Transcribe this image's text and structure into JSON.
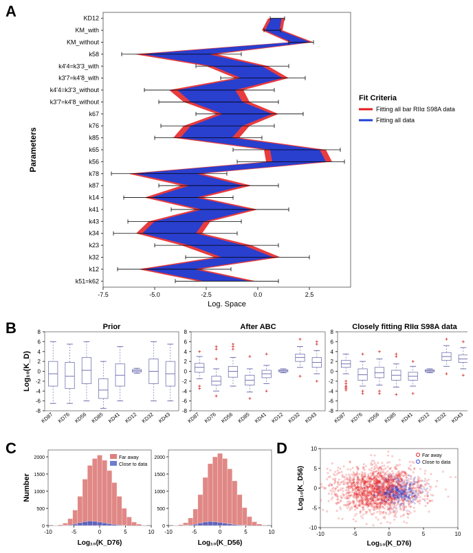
{
  "panelLabels": {
    "A": "A",
    "B": "B",
    "C": "C",
    "D": "D"
  },
  "colors": {
    "red": "#e41a1c",
    "blue": "#1f3fd6",
    "redFill": "#d6605d",
    "blueFill": "#4a5dc4",
    "axis": "#333333",
    "grid": "#e5e5e5",
    "boxLine": "#7070b0",
    "outlier": "#d62728",
    "errBar": "#000000",
    "bg": "#ffffff"
  },
  "panelA": {
    "type": "parallel-coords-violin",
    "xlabel": "Log. Space",
    "ylabel": "Parameters",
    "xlim": [
      -7.5,
      4.5
    ],
    "xticks": [
      -7.5,
      -5.0,
      -2.5,
      0.0,
      2.5
    ],
    "parameters": [
      "KD12",
      "KM_with",
      "KM_without",
      "k58",
      "k4'4=k3'3_with",
      "k3'7=k4'8_with",
      "k4'4=k3'3_without",
      "k3'7=k4'8_without",
      "k67",
      "k76",
      "k85",
      "k65",
      "k56",
      "k78",
      "k87",
      "k14",
      "k41",
      "k43",
      "k34",
      "k23",
      "k32",
      "k12",
      "k51=k62"
    ],
    "redCenters": [
      0.9,
      0.7,
      2.1,
      -4.0,
      -1.0,
      0.2,
      -2.5,
      -2.0,
      -0.5,
      -2.0,
      -2.5,
      1.8,
      2.0,
      -4.5,
      -2.0,
      -4.1,
      -1.5,
      -3.8,
      -4.3,
      -2.0,
      -0.5,
      -4.3,
      -1.5
    ],
    "blueCenters": [
      0.9,
      0.7,
      2.1,
      -4.0,
      -1.0,
      0.2,
      -2.5,
      -2.0,
      -0.5,
      -2.0,
      -2.5,
      1.8,
      2.0,
      -4.5,
      -2.0,
      -4.1,
      -1.5,
      -3.8,
      -4.3,
      -2.0,
      -0.5,
      -4.3,
      -1.5
    ],
    "redHalfW": [
      0.4,
      0.5,
      0.6,
      2.0,
      1.5,
      1.3,
      1.8,
      1.6,
      1.5,
      1.6,
      1.6,
      1.5,
      1.6,
      1.8,
      1.7,
      1.4,
      1.5,
      1.5,
      1.6,
      1.7,
      1.6,
      1.5,
      1.4
    ],
    "blueHalfW": [
      0.25,
      0.35,
      0.45,
      1.6,
      1.2,
      1.0,
      1.4,
      1.25,
      1.2,
      1.25,
      1.25,
      1.2,
      1.3,
      1.5,
      1.3,
      1.1,
      1.2,
      1.2,
      1.3,
      1.3,
      1.25,
      1.2,
      1.1
    ],
    "errLo": [
      0.6,
      0.3,
      1.5,
      -6.6,
      -3.0,
      -1.8,
      -5.5,
      -4.8,
      -3.0,
      -4.7,
      -5.0,
      -1.2,
      -1.0,
      -7.1,
      -4.8,
      -6.5,
      -4.2,
      -6.3,
      -7.0,
      -5.0,
      -3.5,
      -6.8,
      -4.0
    ],
    "errHi": [
      1.3,
      1.1,
      2.7,
      -0.8,
      1.5,
      2.3,
      0.8,
      1.0,
      2.2,
      0.8,
      0.2,
      4.0,
      4.2,
      -1.5,
      1.0,
      -1.2,
      1.5,
      -0.8,
      -1.0,
      1.0,
      2.5,
      -1.3,
      1.0
    ],
    "legend": {
      "title": "Fit Criteria",
      "items": [
        {
          "color": "#e41a1c",
          "label": "Fitting all bar RIIα S98A data"
        },
        {
          "color": "#1f3fd6",
          "label": "Fitting all data"
        }
      ]
    }
  },
  "panelB": {
    "type": "boxplot-row",
    "ylabel": "Log₁₀(K_D)",
    "columns": [
      "KD87",
      "KD76",
      "KD56",
      "KD85",
      "KD41",
      "KD12",
      "KD32",
      "KD43"
    ],
    "ylim": [
      -8,
      8
    ],
    "yticks": [
      -8,
      -6,
      -4,
      -2,
      0,
      2,
      4,
      6,
      8
    ],
    "subplots": [
      {
        "title": "Prior",
        "medians": [
          -0.5,
          -1.0,
          0.2,
          -3.8,
          -0.8,
          0.1,
          0.0,
          -0.5
        ],
        "q1": [
          -3.0,
          -3.5,
          -2.5,
          -5.5,
          -3.0,
          -0.15,
          -2.5,
          -3.0
        ],
        "q3": [
          2.0,
          1.8,
          2.8,
          -1.5,
          1.5,
          0.35,
          2.5,
          2.0
        ],
        "wlo": [
          -6.5,
          -6.5,
          -6.0,
          -7.5,
          -6.0,
          -0.4,
          -6.0,
          -6.0
        ],
        "whi": [
          6.0,
          5.5,
          6.0,
          2.0,
          5.0,
          0.6,
          6.0,
          5.5
        ],
        "outliers": [
          [],
          [],
          [],
          [],
          [],
          [],
          [],
          []
        ]
      },
      {
        "title": "After ABC",
        "medians": [
          0.8,
          -2.0,
          0.0,
          -1.8,
          -0.5,
          0.1,
          2.8,
          1.8
        ],
        "q1": [
          -0.2,
          -2.8,
          -1.2,
          -2.8,
          -1.3,
          -0.1,
          2.0,
          0.8
        ],
        "q3": [
          1.6,
          -1.0,
          1.0,
          -0.8,
          0.2,
          0.3,
          3.5,
          2.8
        ],
        "wlo": [
          -1.5,
          -4.0,
          -3.0,
          -4.2,
          -2.5,
          -0.3,
          0.8,
          -0.5
        ],
        "whi": [
          3.0,
          0.5,
          2.8,
          0.5,
          1.2,
          0.5,
          5.0,
          4.2
        ],
        "outliers": [
          [
            -3,
            -3.5,
            4.0
          ],
          [
            -5,
            2.5,
            4.5,
            5.0
          ],
          [
            4.5,
            5.0,
            5.5
          ],
          [
            -5.5,
            3.0
          ],
          [
            -4,
            3.5
          ],
          [],
          [
            -1,
            6.5
          ],
          [
            -2,
            5.5,
            6.0
          ]
        ]
      },
      {
        "title": "Closely fitting RIIα S98A data",
        "medians": [
          1.5,
          -0.7,
          -0.3,
          -0.8,
          -1.0,
          0.1,
          3.0,
          2.5
        ],
        "q1": [
          0.8,
          -1.8,
          -1.3,
          -1.8,
          -1.8,
          -0.1,
          2.2,
          1.8
        ],
        "q3": [
          2.2,
          0.5,
          0.8,
          0.2,
          -0.2,
          0.3,
          3.8,
          3.3
        ],
        "wlo": [
          -0.5,
          -3.0,
          -2.8,
          -3.2,
          -3.0,
          -0.3,
          1.0,
          0.5
        ],
        "whi": [
          3.5,
          2.0,
          2.5,
          1.5,
          1.0,
          0.5,
          5.2,
          4.8
        ],
        "outliers": [
          [
            -2,
            -2.5,
            -3,
            -3.2,
            -3.5,
            -3.8
          ],
          [
            -4.5,
            -4.0,
            3.5
          ],
          [
            -4,
            -4.5,
            4.0
          ],
          [
            -4.7,
            3.0,
            3.5
          ],
          [
            -4.5,
            2.0
          ],
          [],
          [
            -0.5,
            6.5
          ],
          [
            -0.8,
            6.0
          ]
        ]
      }
    ]
  },
  "panelC": {
    "type": "histogram-pair",
    "ylabel": "Number",
    "yticks": [
      0,
      500,
      1000,
      1500,
      2000
    ],
    "ylim": [
      0,
      2200
    ],
    "xlim": [
      -10,
      10
    ],
    "xticks": [
      -10,
      -5,
      0,
      5,
      10
    ],
    "legend": [
      {
        "color": "#d6605d",
        "label": "Far away"
      },
      {
        "color": "#4a5dc4",
        "label": "Close to data"
      }
    ],
    "hists": [
      {
        "xlabel": "Log₁₀(K_D76)",
        "far": [
          0,
          5,
          20,
          70,
          200,
          450,
          850,
          1350,
          1750,
          1950,
          2050,
          1900,
          1600,
          1250,
          850,
          500,
          250,
          100,
          40,
          10,
          0
        ],
        "close": [
          0,
          0,
          0,
          5,
          15,
          40,
          80,
          110,
          130,
          120,
          100,
          75,
          50,
          30,
          15,
          5,
          0,
          0,
          0,
          0,
          0
        ]
      },
      {
        "xlabel": "Log₁₀(K_D56)",
        "far": [
          0,
          5,
          25,
          80,
          220,
          480,
          900,
          1400,
          1800,
          2000,
          2100,
          1950,
          1650,
          1300,
          900,
          520,
          260,
          110,
          45,
          12,
          0
        ],
        "close": [
          0,
          0,
          0,
          4,
          12,
          35,
          70,
          100,
          115,
          105,
          90,
          68,
          45,
          28,
          14,
          5,
          0,
          0,
          0,
          0,
          0
        ]
      }
    ]
  },
  "panelD": {
    "type": "scatter",
    "xlabel": "Log₁₀(K_D76)",
    "ylabel": "Log₁₀(K_D56)",
    "xlim": [
      -10,
      10
    ],
    "ylim": [
      -10,
      10
    ],
    "xticks": [
      -10,
      -5,
      0,
      5,
      10
    ],
    "yticks": [
      -10,
      -5,
      0,
      5,
      10
    ],
    "legend": [
      {
        "color": "#e41a1c",
        "label": "Far away"
      },
      {
        "color": "#1f3fd6",
        "label": "Close to data"
      }
    ],
    "seed": 42,
    "nRed": 1800,
    "nBlue": 300,
    "redCenter": [
      -1.5,
      -0.5
    ],
    "redSpread": [
      3.2,
      3.0
    ],
    "blueCenter": [
      1.5,
      -1.0
    ],
    "blueSpread": [
      1.6,
      1.6
    ]
  }
}
